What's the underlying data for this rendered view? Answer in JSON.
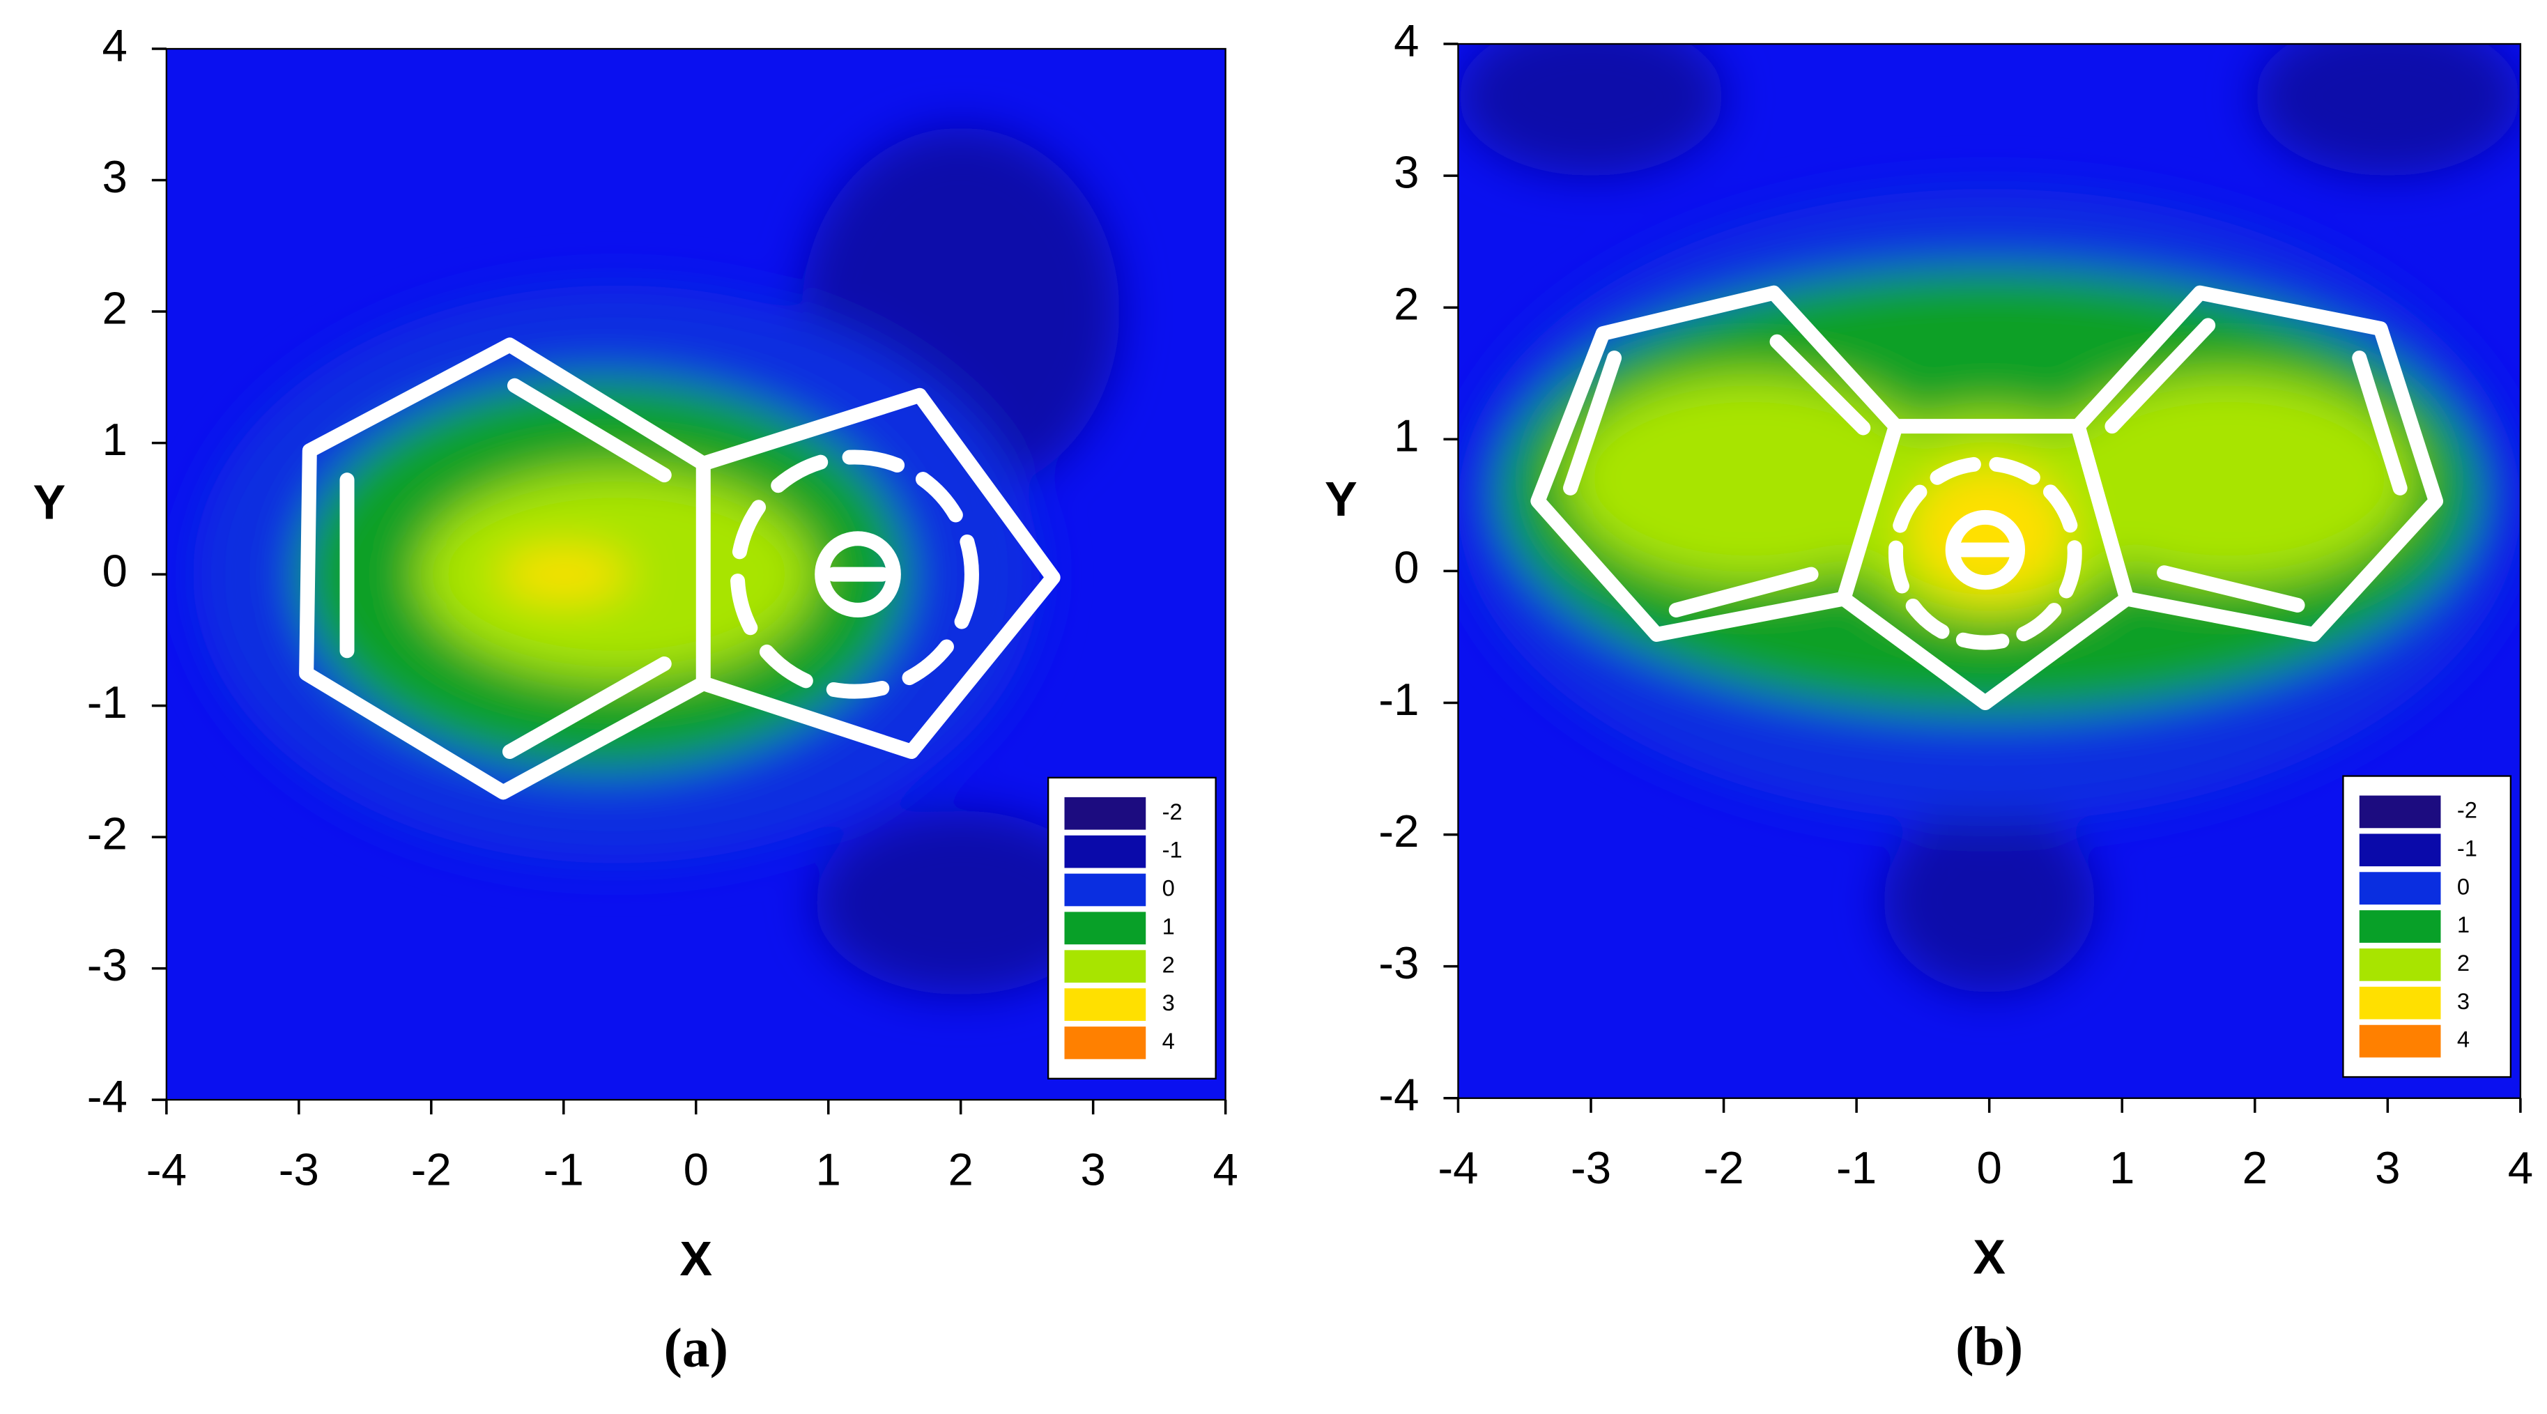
{
  "chart_data": [
    {
      "type": "contour",
      "label": "(a)",
      "xlabel": "X",
      "ylabel": "Y",
      "xlim": [
        -4,
        4
      ],
      "ylim": [
        -4,
        4
      ],
      "xticks": [
        -4,
        -3,
        -2,
        -1,
        0,
        1,
        2,
        3,
        4
      ],
      "yticks": [
        -4,
        -3,
        -2,
        -1,
        0,
        1,
        2,
        3,
        4
      ],
      "background": "#0a10f0",
      "legend_position": "lower right",
      "levels": [
        -2,
        -1,
        0,
        1,
        2,
        3,
        4
      ],
      "colors": [
        "#1c0c80",
        "#0a0aaa",
        "#0a2ee0",
        "#08a028",
        "#a8e400",
        "#ffe000",
        "#ff8000"
      ],
      "regions": [
        {
          "level": -1,
          "x": 2,
          "y": 2,
          "rx": 1.2,
          "ry": 1.4
        },
        {
          "level": -1,
          "x": 2,
          "y": -2.5,
          "rx": 1.1,
          "ry": 0.7
        },
        {
          "level": 0,
          "x": -0.6,
          "y": 0,
          "rx": 3.2,
          "ry": 2.2
        },
        {
          "level": 1,
          "x": -0.7,
          "y": 0,
          "rx": 2.3,
          "ry": 1.5
        },
        {
          "level": 2,
          "x": -0.6,
          "y": 0,
          "rx": 1.5,
          "ry": 0.8
        },
        {
          "level": 3,
          "x": -1,
          "y": 0,
          "rx": 0.5,
          "ry": 0.2
        }
      ]
    },
    {
      "type": "contour",
      "label": "(b)",
      "xlabel": "X",
      "ylabel": "Y",
      "xlim": [
        -4,
        4
      ],
      "ylim": [
        -4,
        4
      ],
      "xticks": [
        -4,
        -3,
        -2,
        -1,
        0,
        1,
        2,
        3,
        4
      ],
      "yticks": [
        -4,
        -3,
        -2,
        -1,
        0,
        1,
        2,
        3,
        4
      ],
      "background": "#0a10f0",
      "legend_position": "lower right",
      "levels": [
        -2,
        -1,
        0,
        1,
        2,
        3,
        4
      ],
      "colors": [
        "#1c0c80",
        "#0a0aaa",
        "#0a2ee0",
        "#08a028",
        "#a8e400",
        "#ffe000",
        "#ff8000"
      ],
      "regions": [
        {
          "level": -1,
          "x": 0,
          "y": -2.5,
          "rx": 0.8,
          "ry": 0.7
        },
        {
          "level": -1,
          "x": -3,
          "y": 3.6,
          "rx": 1,
          "ry": 0.6
        },
        {
          "level": -1,
          "x": 3,
          "y": 3.6,
          "rx": 1,
          "ry": 0.6
        },
        {
          "level": 0,
          "x": 0,
          "y": 0.5,
          "rx": 4,
          "ry": 2.4
        },
        {
          "level": 1,
          "x": 0,
          "y": 0.6,
          "rx": 3.7,
          "ry": 1.7
        },
        {
          "level": 2,
          "x": -1.8,
          "y": 0.7,
          "rx": 1.4,
          "ry": 0.8
        },
        {
          "level": 2,
          "x": 1.8,
          "y": 0.7,
          "rx": 1.4,
          "ry": 0.8
        },
        {
          "level": 2,
          "x": 0,
          "y": 0.4,
          "rx": 1.1,
          "ry": 0.8
        },
        {
          "level": 3,
          "x": 0,
          "y": 0.3,
          "rx": 0.6,
          "ry": 0.5
        }
      ]
    }
  ]
}
